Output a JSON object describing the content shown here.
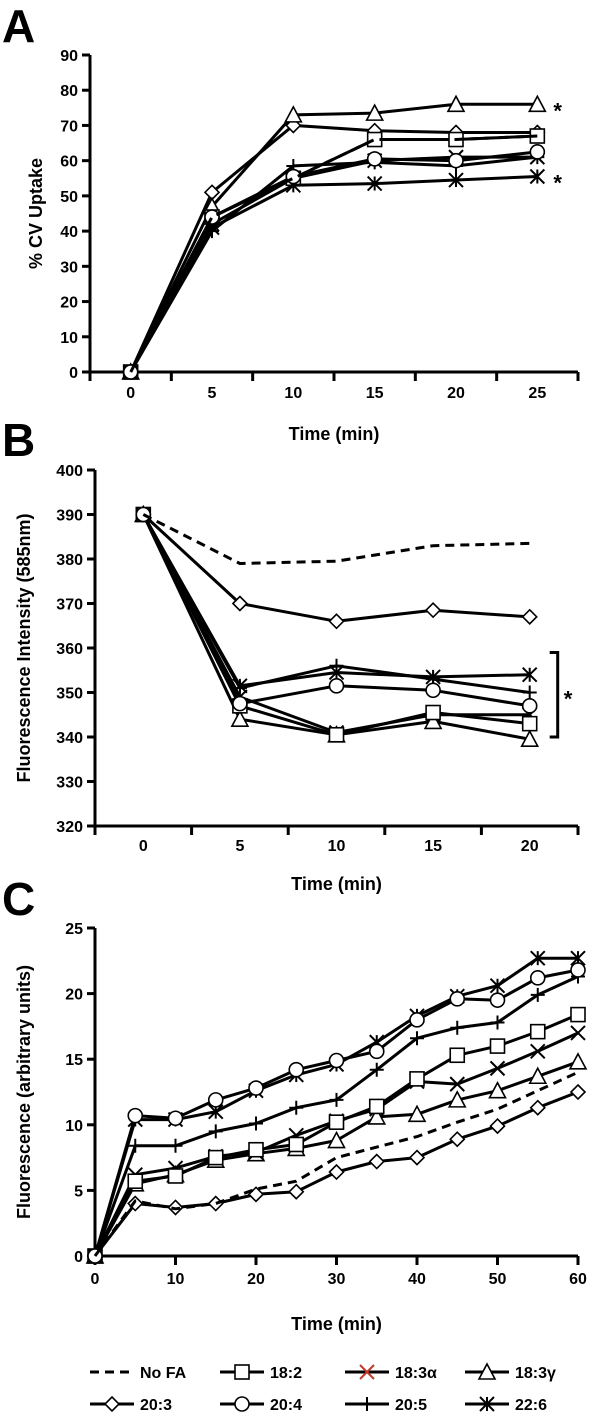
{
  "chart_data": [
    {
      "type": "line",
      "panel_label": "A",
      "xlabel": "Time (min)",
      "ylabel": "% CV Uptake",
      "xlim": [
        -2.5,
        27.5
      ],
      "ylim": [
        0,
        90
      ],
      "x_ticks": [
        0,
        5,
        10,
        15,
        20,
        25
      ],
      "y_ticks": [
        0,
        10,
        20,
        30,
        40,
        50,
        60,
        70,
        80,
        90
      ],
      "grid": false,
      "x": [
        0,
        5,
        10,
        15,
        20,
        25
      ],
      "annotations": [
        {
          "text": "*",
          "near_series": "18:3γ"
        },
        {
          "text": "*",
          "near_series": "22:6"
        }
      ],
      "series": [
        {
          "name": "No FA",
          "values": [
            0,
            44,
            55,
            66,
            66,
            67
          ]
        },
        {
          "name": "18:2",
          "values": [
            0,
            44,
            55,
            66,
            66,
            67
          ]
        },
        {
          "name": "18:3α",
          "values": [
            0,
            42,
            55,
            60,
            61,
            61
          ]
        },
        {
          "name": "18:3γ",
          "values": [
            0,
            47,
            73,
            73.5,
            76,
            76
          ]
        },
        {
          "name": "20:3",
          "values": [
            0,
            51,
            70,
            68.5,
            68,
            68
          ]
        },
        {
          "name": "20:4",
          "values": [
            0,
            44,
            55.5,
            60.5,
            60,
            62.5
          ]
        },
        {
          "name": "20:5",
          "values": [
            0,
            40,
            58.5,
            59.5,
            58.5,
            61
          ]
        },
        {
          "name": "22:6",
          "values": [
            0,
            41,
            53,
            53.5,
            54.5,
            55.5
          ]
        }
      ]
    },
    {
      "type": "line",
      "panel_label": "B",
      "xlabel": "Time (min)",
      "ylabel": "Fluorescence Intensity (585nm)",
      "xlim": [
        -2.5,
        22.5
      ],
      "ylim": [
        320,
        400
      ],
      "x_ticks": [
        0,
        5,
        10,
        15,
        20
      ],
      "y_ticks": [
        320,
        330,
        340,
        350,
        360,
        370,
        380,
        390,
        400
      ],
      "grid": false,
      "x": [
        0,
        5,
        10,
        15,
        20
      ],
      "annotations": [
        {
          "text": "*",
          "bracket_range": [
            340,
            359
          ]
        }
      ],
      "series": [
        {
          "name": "No FA",
          "values": [
            390,
            379,
            379.5,
            383,
            383.5
          ]
        },
        {
          "name": "18:2",
          "values": [
            390,
            347,
            340.5,
            345.5,
            343
          ]
        },
        {
          "name": "18:3α",
          "values": [
            390,
            349,
            341,
            345,
            345
          ]
        },
        {
          "name": "18:3γ",
          "values": [
            390,
            344,
            340.5,
            343.5,
            339.5
          ]
        },
        {
          "name": "20:3",
          "values": [
            390,
            370,
            366,
            368.5,
            367
          ]
        },
        {
          "name": "20:4",
          "values": [
            390,
            347.5,
            351.5,
            350.5,
            347
          ]
        },
        {
          "name": "20:5",
          "values": [
            390,
            351,
            356,
            353,
            350
          ]
        },
        {
          "name": "22:6",
          "values": [
            390,
            351.5,
            354.5,
            353.5,
            354
          ]
        }
      ]
    },
    {
      "type": "line",
      "panel_label": "C",
      "xlabel": "Time (min)",
      "ylabel": "Fluorescence (arbitrary units)",
      "xlim": [
        0,
        60
      ],
      "ylim": [
        0,
        25
      ],
      "x_ticks": [
        0,
        10,
        20,
        30,
        40,
        50,
        60
      ],
      "y_ticks": [
        0,
        5,
        10,
        15,
        20,
        25
      ],
      "grid": false,
      "x": [
        0,
        5,
        10,
        15,
        20,
        25,
        30,
        35,
        40,
        45,
        50,
        55,
        60
      ],
      "series": [
        {
          "name": "No FA",
          "values": [
            0,
            4.2,
            3.6,
            4.0,
            5.1,
            5.7,
            7.5,
            8.3,
            9.1,
            10.2,
            11.2,
            12.6,
            14.0
          ]
        },
        {
          "name": "18:2",
          "values": [
            0,
            5.7,
            6.1,
            7.5,
            8.1,
            8.5,
            10.2,
            11.4,
            13.5,
            15.3,
            16.0,
            17.1,
            18.4
          ]
        },
        {
          "name": "18:3α",
          "values": [
            0,
            6.2,
            6.7,
            7.6,
            7.9,
            9.2,
            10.3,
            11.2,
            13.3,
            13.1,
            14.3,
            15.6,
            17.0
          ]
        },
        {
          "name": "18:3γ",
          "values": [
            0,
            5.5,
            6.2,
            7.3,
            7.8,
            8.2,
            8.8,
            10.6,
            10.8,
            11.9,
            12.6,
            13.7,
            14.8
          ]
        },
        {
          "name": "20:3",
          "values": [
            0,
            4.0,
            3.7,
            4.0,
            4.7,
            4.9,
            6.4,
            7.2,
            7.5,
            8.9,
            9.9,
            11.3,
            12.5
          ]
        },
        {
          "name": "20:4",
          "values": [
            0,
            10.7,
            10.5,
            11.9,
            12.8,
            14.2,
            14.9,
            15.6,
            18.0,
            19.6,
            19.5,
            21.2,
            21.8
          ]
        },
        {
          "name": "20:5",
          "values": [
            0,
            8.4,
            8.4,
            9.5,
            10.1,
            11.3,
            11.9,
            14.2,
            16.6,
            17.4,
            17.8,
            19.9,
            21.3
          ]
        },
        {
          "name": "22:6",
          "values": [
            0,
            10.4,
            10.4,
            11.0,
            12.6,
            13.8,
            14.6,
            16.3,
            18.3,
            19.8,
            20.6,
            22.7,
            22.7
          ]
        }
      ]
    }
  ],
  "legend": {
    "placement": "bottom",
    "items": [
      {
        "label": "No FA",
        "marker": "none",
        "line": "dashed"
      },
      {
        "label": "18:2",
        "marker": "square",
        "line": "solid"
      },
      {
        "label": "18:3α",
        "marker": "x",
        "line": "solid",
        "marker_color": "#c0392b"
      },
      {
        "label": "18:3γ",
        "marker": "triangle",
        "line": "solid"
      },
      {
        "label": "20:3",
        "marker": "diamond",
        "line": "solid"
      },
      {
        "label": "20:4",
        "marker": "circle",
        "line": "solid"
      },
      {
        "label": "20:5",
        "marker": "plus",
        "line": "solid"
      },
      {
        "label": "22:6",
        "marker": "asterisk",
        "line": "solid"
      }
    ]
  },
  "colors": {
    "line": "#000000",
    "marker_fill": "#ffffff",
    "accent_18_3a": "#c0392b"
  }
}
